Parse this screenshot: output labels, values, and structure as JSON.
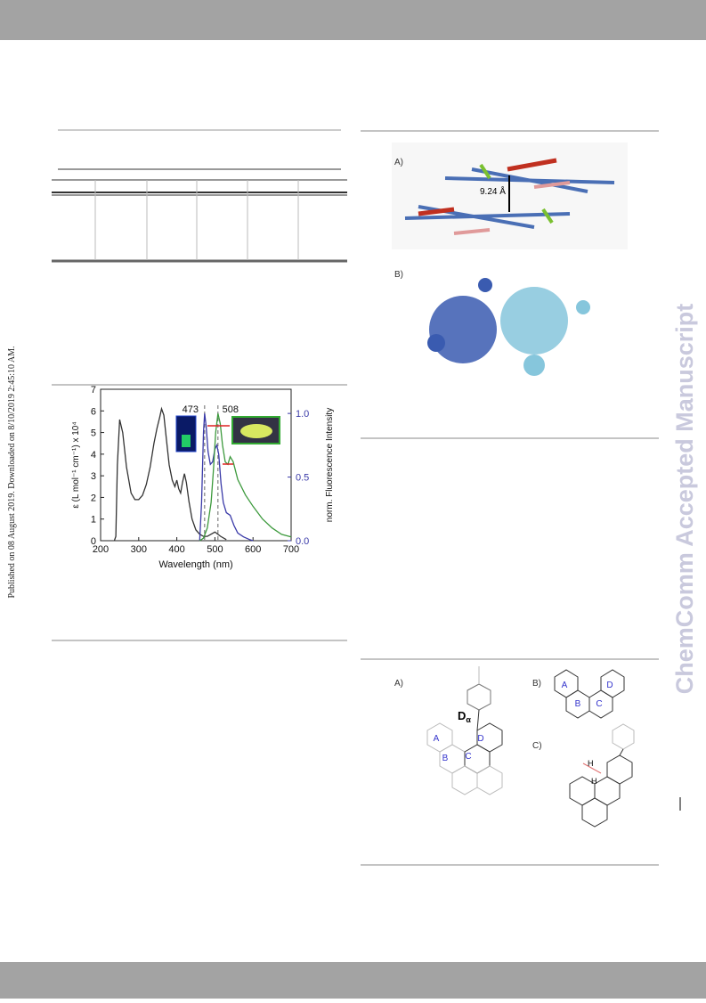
{
  "left_note": "Published on 08 August 2019. Downloaded on 8/10/2019 2:45:10 AM.",
  "watermark": "ChemComm Accepted Manuscript",
  "figure_spectrum": {
    "type": "line",
    "x_label": "Wavelength (nm)",
    "y_label": "ε (L mol⁻¹ cm⁻¹) x 10⁴",
    "y2_label": "norm. Fluorescence Intensity",
    "xlim": [
      200,
      700
    ],
    "xticks": [
      200,
      300,
      400,
      500,
      600,
      700
    ],
    "ylim": [
      0,
      7
    ],
    "yticks": [
      0,
      1,
      2,
      3,
      4,
      5,
      6,
      7
    ],
    "y2lim": [
      0,
      1.19
    ],
    "y2ticks": [
      {
        "value": 0,
        "label": "0.0"
      },
      {
        "value": 0.5,
        "label": "0.5"
      },
      {
        "value": 1,
        "label": "1.0"
      }
    ],
    "annotations": [
      473,
      508
    ],
    "series": [
      {
        "color": "#333333",
        "x": [
          236,
          240,
          244,
          250,
          258,
          268,
          280,
          290,
          300,
          310,
          320,
          330,
          340,
          348,
          355,
          360,
          366,
          372,
          380,
          388,
          395,
          400,
          405,
          410,
          415,
          420,
          425,
          432,
          440,
          450,
          460,
          470,
          480,
          490,
          500,
          515,
          530
        ],
        "values": [
          0,
          0.2,
          3.5,
          5.6,
          5.0,
          3.4,
          2.2,
          1.9,
          1.9,
          2.1,
          2.6,
          3.4,
          4.5,
          5.2,
          5.7,
          6.1,
          5.8,
          4.8,
          3.5,
          2.8,
          2.5,
          2.8,
          2.4,
          2.2,
          2.7,
          3.1,
          2.7,
          1.8,
          1.0,
          0.5,
          0.3,
          0.2,
          0.2,
          0.3,
          0.4,
          0.2,
          0.05
        ]
      },
      {
        "color": "#3a3aa8",
        "axis": "y2",
        "x": [
          460,
          465,
          470,
          473,
          477,
          482,
          488,
          494,
          500,
          505,
          510,
          516,
          522,
          530,
          540,
          550,
          560,
          575,
          590,
          600
        ],
        "values": [
          0,
          0.3,
          0.85,
          1.0,
          0.9,
          0.7,
          0.6,
          0.62,
          0.72,
          0.75,
          0.68,
          0.45,
          0.3,
          0.22,
          0.2,
          0.12,
          0.06,
          0.03,
          0.01,
          0
        ]
      },
      {
        "color": "#3d9a3d",
        "axis": "y2",
        "x": [
          460,
          470,
          480,
          490,
          496,
          502,
          508,
          514,
          520,
          527,
          534,
          540,
          548,
          560,
          580,
          600,
          625,
          650,
          675,
          700
        ],
        "values": [
          0,
          0.02,
          0.1,
          0.3,
          0.55,
          0.85,
          1.0,
          0.92,
          0.75,
          0.62,
          0.6,
          0.66,
          0.62,
          0.48,
          0.36,
          0.27,
          0.17,
          0.1,
          0.05,
          0.03
        ]
      }
    ]
  },
  "figure_packing": {
    "panel_a": "A)",
    "distance": "9.24 Å",
    "panel_b": "B)"
  },
  "figure_structure": {
    "panel_a": "A)",
    "panel_b": "B)",
    "panel_c": "C)",
    "rings_a": [
      "A",
      "B",
      "C",
      "D"
    ],
    "rings_b": [
      "A",
      "B",
      "C",
      "D"
    ],
    "d_label": "D",
    "d_subscript": "α",
    "h_labels": [
      "H",
      "H"
    ]
  }
}
